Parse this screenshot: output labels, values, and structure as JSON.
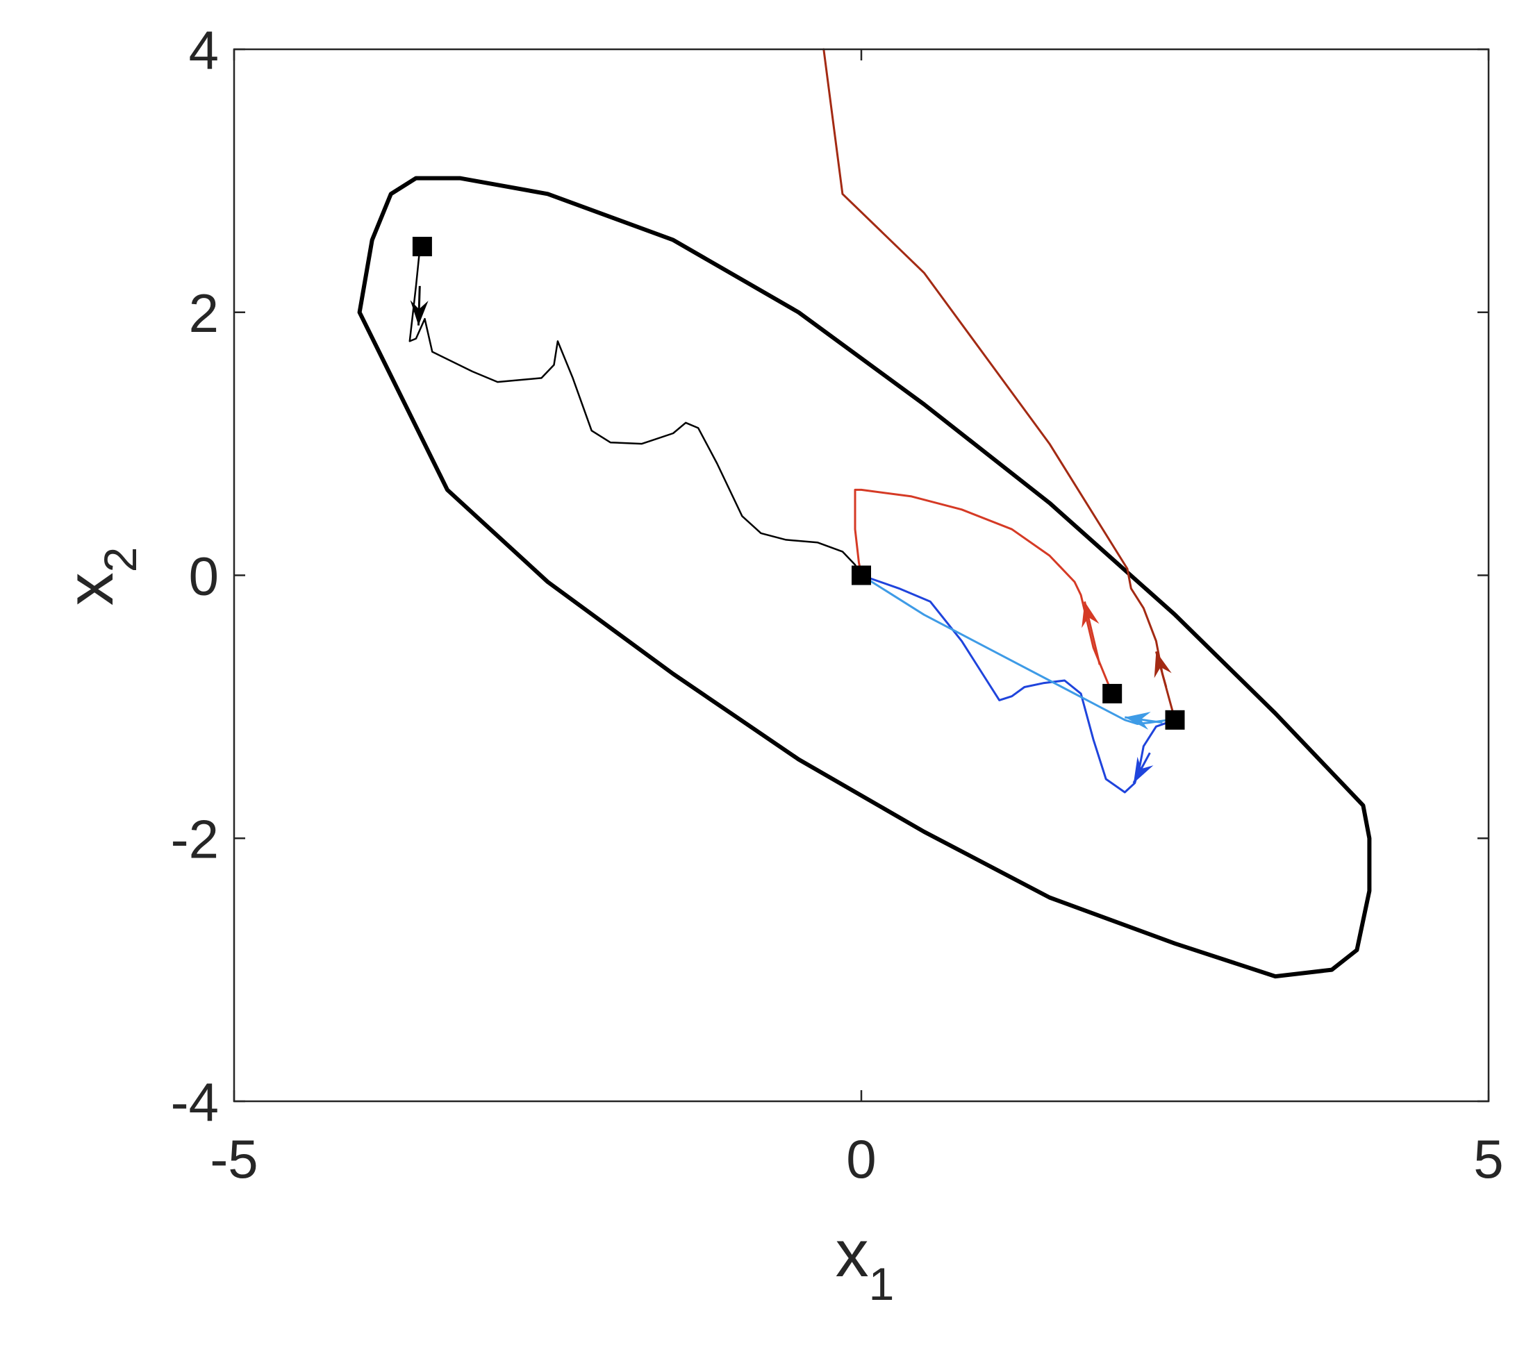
{
  "chart_data": {
    "type": "line",
    "title": "",
    "xlabel": {
      "main": "x",
      "sub": "1"
    },
    "ylabel": {
      "main": "x",
      "sub": "2"
    },
    "xlim": [
      -5,
      5
    ],
    "ylim": [
      -4,
      4
    ],
    "xticks": [
      -5,
      0,
      5
    ],
    "yticks": [
      -4,
      -2,
      0,
      2,
      4
    ],
    "xtick_labels": [
      "-5",
      "0",
      "5"
    ],
    "ytick_labels": [
      "-4",
      "-2",
      "0",
      "2",
      "4"
    ],
    "grid": false,
    "box": true,
    "colors": {
      "axis": "#262626",
      "boundary": "#000000",
      "black_traj": "#000000",
      "dark_red": "#a32a13",
      "red": "#d53a25",
      "blue": "#1f44dc",
      "light_blue": "#3e9be6"
    },
    "series": [
      {
        "key": "boundary",
        "color": "#000000",
        "width": 6,
        "closed": true,
        "points": [
          [
            -4,
            2
          ],
          [
            -3.9,
            2.55
          ],
          [
            -3.75,
            2.9
          ],
          [
            -3.55,
            3.02
          ],
          [
            -3.2,
            3.02
          ],
          [
            -2.5,
            2.9
          ],
          [
            -1.5,
            2.55
          ],
          [
            -0.5,
            2.0
          ],
          [
            0.5,
            1.3
          ],
          [
            1.5,
            0.55
          ],
          [
            2.5,
            -0.3
          ],
          [
            3.3,
            -1.05
          ],
          [
            4.0,
            -1.75
          ],
          [
            4.05,
            -2.0
          ],
          [
            4.05,
            -2.4
          ],
          [
            3.95,
            -2.85
          ],
          [
            3.75,
            -3.0
          ],
          [
            3.3,
            -3.05
          ],
          [
            2.5,
            -2.8
          ],
          [
            1.5,
            -2.45
          ],
          [
            0.5,
            -1.95
          ],
          [
            -0.5,
            -1.4
          ],
          [
            -1.5,
            -0.75
          ],
          [
            -2.5,
            -0.05
          ],
          [
            -3.3,
            0.65
          ],
          [
            -4,
            2
          ]
        ]
      },
      {
        "key": "black_traj",
        "color": "#000000",
        "width": 2.5,
        "points": [
          [
            -3.52,
            2.48
          ],
          [
            -3.55,
            2.2
          ],
          [
            -3.58,
            1.95
          ],
          [
            -3.6,
            1.78
          ],
          [
            -3.55,
            1.8
          ],
          [
            -3.48,
            1.95
          ],
          [
            -3.42,
            1.7
          ],
          [
            -3.1,
            1.55
          ],
          [
            -2.9,
            1.47
          ],
          [
            -2.55,
            1.5
          ],
          [
            -2.45,
            1.6
          ],
          [
            -2.42,
            1.78
          ],
          [
            -2.3,
            1.5
          ],
          [
            -2.15,
            1.1
          ],
          [
            -2.0,
            1.01
          ],
          [
            -1.75,
            1.0
          ],
          [
            -1.5,
            1.08
          ],
          [
            -1.4,
            1.16
          ],
          [
            -1.3,
            1.12
          ],
          [
            -1.15,
            0.85
          ],
          [
            -0.95,
            0.45
          ],
          [
            -0.8,
            0.32
          ],
          [
            -0.6,
            0.27
          ],
          [
            -0.35,
            0.25
          ],
          [
            -0.15,
            0.18
          ],
          [
            -0.05,
            0.08
          ],
          [
            0,
            0
          ]
        ]
      },
      {
        "key": "dark_red",
        "color": "#a32a13",
        "width": 3,
        "points": [
          [
            2.5,
            -1.1
          ],
          [
            2.4,
            -0.75
          ],
          [
            2.35,
            -0.5
          ],
          [
            2.25,
            -0.25
          ],
          [
            2.15,
            -0.1
          ],
          [
            2.12,
            0.05
          ],
          [
            1.5,
            1.0
          ],
          [
            0.5,
            2.3
          ],
          [
            -0.15,
            2.9
          ],
          [
            -0.3,
            4.0
          ]
        ]
      },
      {
        "key": "red",
        "color": "#d53a25",
        "width": 3,
        "points": [
          [
            2.0,
            -0.9
          ],
          [
            1.85,
            -0.55
          ],
          [
            1.75,
            -0.15
          ],
          [
            1.7,
            -0.05
          ],
          [
            1.5,
            0.15
          ],
          [
            1.2,
            0.35
          ],
          [
            0.8,
            0.5
          ],
          [
            0.4,
            0.6
          ],
          [
            0.0,
            0.65
          ],
          [
            -0.05,
            0.65
          ],
          [
            -0.05,
            0.35
          ],
          [
            -0.02,
            0.1
          ],
          [
            0,
            0
          ]
        ]
      },
      {
        "key": "blue",
        "color": "#1f44dc",
        "width": 3,
        "points": [
          [
            2.5,
            -1.1
          ],
          [
            2.35,
            -1.15
          ],
          [
            2.25,
            -1.3
          ],
          [
            2.22,
            -1.45
          ],
          [
            2.18,
            -1.58
          ],
          [
            2.1,
            -1.65
          ],
          [
            1.95,
            -1.55
          ],
          [
            1.85,
            -1.25
          ],
          [
            1.75,
            -0.9
          ],
          [
            1.62,
            -0.8
          ],
          [
            1.45,
            -0.82
          ],
          [
            1.3,
            -0.85
          ],
          [
            1.2,
            -0.92
          ],
          [
            1.1,
            -0.95
          ],
          [
            1.0,
            -0.8
          ],
          [
            0.8,
            -0.5
          ],
          [
            0.55,
            -0.2
          ],
          [
            0.3,
            -0.1
          ],
          [
            0,
            0
          ]
        ]
      },
      {
        "key": "light_blue",
        "color": "#3e9be6",
        "width": 3,
        "points": [
          [
            2.45,
            -1.1
          ],
          [
            2.3,
            -1.12
          ],
          [
            2.2,
            -1.13
          ],
          [
            2.1,
            -1.1
          ],
          [
            1.9,
            -1.0
          ],
          [
            1.5,
            -0.8
          ],
          [
            1.0,
            -0.55
          ],
          [
            0.5,
            -0.3
          ],
          [
            0.2,
            -0.12
          ],
          [
            0,
            0
          ]
        ]
      }
    ],
    "arrows": [
      {
        "color": "#000000",
        "tail": [
          -3.52,
          2.2
        ],
        "head": [
          -3.53,
          1.9
        ]
      },
      {
        "color": "#d53a25",
        "tail": [
          1.9,
          -0.68
        ],
        "head": [
          1.78,
          -0.2
        ]
      },
      {
        "color": "#a32a13",
        "tail": [
          2.43,
          -0.85
        ],
        "head": [
          2.35,
          -0.58
        ]
      },
      {
        "color": "#1f44dc",
        "tail": [
          2.3,
          -1.35
        ],
        "head": [
          2.17,
          -1.58
        ]
      },
      {
        "color": "#3e9be6",
        "tail": [
          2.4,
          -1.12
        ],
        "head": [
          2.1,
          -1.08
        ]
      }
    ],
    "markers": [
      {
        "x": -3.5,
        "y": 2.5
      },
      {
        "x": 0,
        "y": 0
      },
      {
        "x": 2.0,
        "y": -0.9
      },
      {
        "x": 2.5,
        "y": -1.1
      }
    ]
  }
}
